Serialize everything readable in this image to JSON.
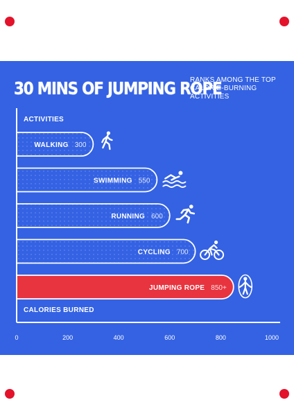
{
  "chart_data": {
    "type": "bar",
    "orientation": "horizontal",
    "title": "30 MINS OF JUMPING ROPE",
    "subtitle_lines": [
      "RANKS AMONG THE TOP",
      "CALORIE-BURNING",
      "ACTIVITIES"
    ],
    "ylabel": "ACTIVITIES",
    "xlabel": "CALORIES BURNED",
    "categories": [
      "WALKING",
      "SWIMMING",
      "RUNNING",
      "CYCLING",
      "JUMPING ROPE"
    ],
    "values": [
      300,
      550,
      600,
      700,
      850
    ],
    "value_labels": [
      "300",
      "550",
      "600",
      "700",
      "850+"
    ],
    "icons": [
      "walking-icon",
      "swimming-icon",
      "running-icon",
      "cycling-icon",
      "jump-rope-icon"
    ],
    "highlight_index": 4,
    "xlim": [
      0,
      1000
    ],
    "xticks": [
      "0",
      "200",
      "400",
      "600",
      "800",
      "1000"
    ],
    "colors": {
      "background": "#3462e3",
      "bar": "#3462e3",
      "highlight": "#e8343f",
      "outline": "#ffffff"
    }
  }
}
